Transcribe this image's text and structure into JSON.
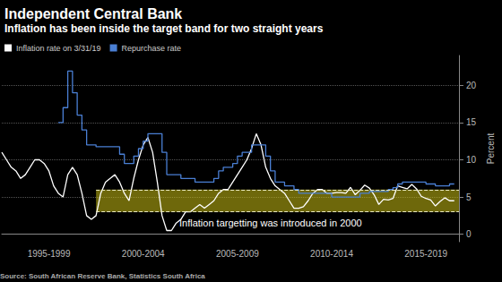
{
  "chart_data": {
    "type": "line",
    "title": "Independent Central Bank",
    "subtitle": "Inflation has been inside the target band for two straight years",
    "source": "Source: South African Reserve Bank, Statistics South Africa",
    "y_label": "Percent",
    "annotation": "Inflation targetting was introduced in 2000",
    "target_band": {
      "from": 3,
      "to": 6,
      "start": 2000
    },
    "legend": "top-left",
    "grid": true,
    "xlim": [
      1995,
      2019.25
    ],
    "xticks": [
      {
        "value": 1997.5,
        "label": "1995-1999"
      },
      {
        "value": 2002.5,
        "label": "2000-2004"
      },
      {
        "value": 2007.5,
        "label": "2005-2009"
      },
      {
        "value": 2012.5,
        "label": "2010-2014"
      },
      {
        "value": 2017.5,
        "label": "2015-2019"
      }
    ],
    "ylim": [
      -1,
      24
    ],
    "yticks": [
      0,
      5,
      10,
      15,
      20
    ],
    "x": [
      1995,
      1995.25,
      1995.5,
      1995.75,
      1996,
      1996.25,
      1996.5,
      1996.75,
      1997,
      1997.25,
      1997.5,
      1997.75,
      1998,
      1998.25,
      1998.5,
      1998.75,
      1999,
      1999.25,
      1999.5,
      1999.75,
      2000,
      2000.25,
      2000.5,
      2000.75,
      2001,
      2001.25,
      2001.5,
      2001.75,
      2002,
      2002.25,
      2002.5,
      2002.75,
      2003,
      2003.25,
      2003.5,
      2003.75,
      2004,
      2004.25,
      2004.5,
      2004.75,
      2005,
      2005.25,
      2005.5,
      2005.75,
      2006,
      2006.25,
      2006.5,
      2006.75,
      2007,
      2007.25,
      2007.5,
      2007.75,
      2008,
      2008.25,
      2008.5,
      2008.75,
      2009,
      2009.25,
      2009.5,
      2009.75,
      2010,
      2010.25,
      2010.5,
      2010.75,
      2011,
      2011.25,
      2011.5,
      2011.75,
      2012,
      2012.25,
      2012.5,
      2012.75,
      2013,
      2013.25,
      2013.5,
      2013.75,
      2014,
      2014.25,
      2014.5,
      2014.75,
      2015,
      2015.25,
      2015.5,
      2015.75,
      2016,
      2016.25,
      2016.5,
      2016.75,
      2017,
      2017.25,
      2017.5,
      2017.75,
      2018,
      2018.25,
      2018.5,
      2018.75,
      2019
    ],
    "series": [
      {
        "name": "Inflation rate on 3/31/19",
        "color": "#ffffff",
        "line_style": "solid",
        "values": [
          11,
          10,
          9,
          8.5,
          7.5,
          8,
          9,
          10,
          10,
          9.5,
          8.5,
          6.5,
          5.5,
          5,
          8,
          9,
          8,
          5.5,
          2.5,
          2,
          2.5,
          5.5,
          7,
          7.5,
          8,
          7,
          5.5,
          4.5,
          7.5,
          10,
          12,
          13,
          11,
          7,
          2.5,
          0.5,
          0.5,
          1.5,
          2,
          3,
          3,
          3.5,
          4,
          3.5,
          4,
          4.5,
          5.5,
          6,
          6,
          7,
          8,
          9,
          10,
          11.5,
          13.5,
          12,
          9,
          7.5,
          6.5,
          6,
          5.5,
          4.5,
          3.5,
          3.5,
          3.7,
          4.5,
          5.5,
          6,
          6,
          5.5,
          5.5,
          5.6,
          5.6,
          5.5,
          6.3,
          5.3,
          5.9,
          6.6,
          6.2,
          5.3,
          4,
          4.7,
          4.6,
          4.8,
          6.5,
          6.3,
          6.1,
          6.7,
          6.1,
          5.1,
          4.8,
          4.6,
          3.8,
          4.4,
          4.9,
          4.5,
          4.5
        ]
      },
      {
        "name": "Repurchase rate",
        "color": "#4a7fd4",
        "line_style": "step",
        "values": [
          null,
          null,
          null,
          null,
          null,
          null,
          null,
          null,
          null,
          null,
          null,
          null,
          15,
          17,
          21.9,
          19,
          16,
          14,
          12,
          12,
          11.75,
          11.75,
          11.75,
          11.75,
          11.75,
          10.75,
          9.5,
          9.5,
          10.5,
          11.5,
          12.5,
          13.5,
          13.5,
          13.5,
          11,
          8,
          8,
          8,
          7.5,
          7.5,
          7.5,
          7,
          7,
          7,
          7,
          7.5,
          8.5,
          9,
          9,
          9.5,
          10.5,
          11,
          11,
          12,
          12,
          12,
          10.5,
          8.5,
          7,
          7,
          6.5,
          6.5,
          6,
          5.5,
          5.5,
          5.5,
          5.5,
          5.5,
          5.5,
          5.5,
          5,
          5,
          5,
          5,
          5,
          5,
          5.5,
          5.5,
          5.75,
          5.75,
          5.75,
          5.75,
          6,
          6.25,
          6.75,
          7,
          7,
          7,
          7,
          7,
          6.75,
          6.75,
          6.5,
          6.5,
          6.5,
          6.75,
          6.75
        ]
      }
    ]
  }
}
